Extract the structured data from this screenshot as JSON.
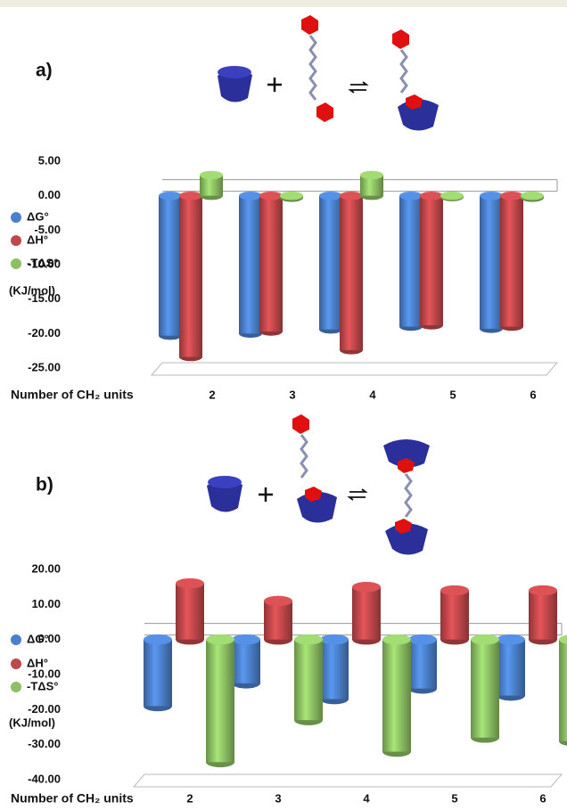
{
  "chart_data": [
    {
      "type": "bar",
      "panel_label": "a)",
      "y_label": "(KJ/mol)",
      "x_label": "Number of CH₂ units",
      "categories": [
        "2",
        "3",
        "4",
        "5",
        "6"
      ],
      "series": [
        {
          "name": "ΔG°",
          "color": "#4a7fc9",
          "values": [
            -20.3,
            -20.0,
            -19.4,
            -19.0,
            -19.3
          ]
        },
        {
          "name": "ΔH°",
          "color": "#c0474a",
          "values": [
            -23.4,
            -19.7,
            -22.4,
            -18.8,
            -19.0
          ]
        },
        {
          "name": "-TΔS°",
          "color": "#8cc063",
          "values": [
            3.0,
            -0.3,
            3.0,
            -0.2,
            -0.3
          ]
        }
      ],
      "ylim": [
        -25,
        5
      ],
      "yticks": [
        {
          "value": 5,
          "label": "5.00"
        },
        {
          "value": 0,
          "label": "0.00"
        },
        {
          "value": -5,
          "label": "-5.00"
        },
        {
          "value": -10,
          "label": "-10.00"
        },
        {
          "value": -15,
          "label": "-15.00"
        },
        {
          "value": -20,
          "label": "-20.00"
        },
        {
          "value": -25,
          "label": "-25.00"
        }
      ],
      "grid": false
    },
    {
      "type": "bar",
      "panel_label": "b)",
      "y_label": "(KJ/mol)",
      "x_label": "Number of CH₂ units",
      "categories": [
        "2",
        "3",
        "4",
        "5",
        "6"
      ],
      "series": [
        {
          "name": "ΔG°",
          "color": "#4a7fc9",
          "values": [
            -19,
            -12.5,
            -17,
            -14,
            -16
          ]
        },
        {
          "name": "ΔH°",
          "color": "#c0474a",
          "values": [
            16,
            11,
            15,
            14,
            14
          ]
        },
        {
          "name": "-TΔS°",
          "color": "#8cc063",
          "values": [
            -35,
            -23,
            -32,
            -28,
            -29
          ]
        }
      ],
      "ylim": [
        -40,
        20
      ],
      "yticks": [
        {
          "value": 20,
          "label": "20.00"
        },
        {
          "value": 10,
          "label": "10.00"
        },
        {
          "value": 0,
          "label": "0.00"
        },
        {
          "value": -10,
          "label": "-10.00"
        },
        {
          "value": -20,
          "label": "-20.00"
        },
        {
          "value": -30,
          "label": "-30.00"
        },
        {
          "value": -40,
          "label": "-40.00"
        }
      ],
      "grid": false
    }
  ]
}
